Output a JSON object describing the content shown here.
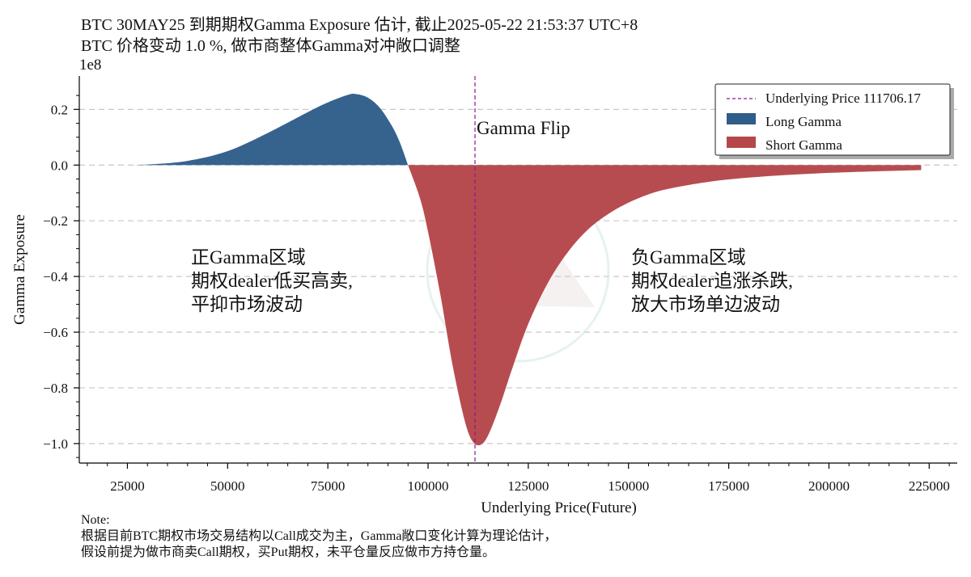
{
  "chart_data": {
    "type": "area",
    "title": "BTC 30MAY25 到期期权Gamma Exposure 估计, 截止2025-05-22 21:53:37 UTC+8",
    "subtitle": "BTC 价格变动 1.0 %, 做市商整体Gamma对冲敞口调整",
    "xlabel": "Underlying Price(Future)",
    "ylabel": "Gamma Exposure",
    "y_scale_label": "1e8",
    "xlim": [
      13000,
      232000
    ],
    "ylim": [
      -1.07,
      0.32
    ],
    "x_ticks": [
      25000,
      50000,
      75000,
      100000,
      125000,
      150000,
      175000,
      200000,
      225000
    ],
    "y_ticks": [
      0.2,
      0.0,
      -0.2,
      -0.4,
      -0.6,
      -0.8,
      -1.0
    ],
    "y_tick_labels": [
      "0.2",
      "0.0",
      "−0.2",
      "−0.4",
      "−0.6",
      "−0.8",
      "−1.0"
    ],
    "grid": "horizontal dashed",
    "underlying_price": 111706.17,
    "flip_price": 95000,
    "series": [
      {
        "name": "Long Gamma",
        "color": "#2f5d8a",
        "x": [
          22000,
          30000,
          40000,
          50000,
          60000,
          70000,
          75000,
          80000,
          82000,
          85000,
          88000,
          91000,
          93000,
          95000
        ],
        "y": [
          0.0,
          0.002,
          0.015,
          0.05,
          0.115,
          0.19,
          0.225,
          0.252,
          0.255,
          0.242,
          0.205,
          0.14,
          0.08,
          0.0
        ]
      },
      {
        "name": "Short Gamma",
        "color": "#b5464a",
        "x": [
          95000,
          98000,
          100000,
          103000,
          106000,
          109000,
          111000,
          113000,
          115000,
          118000,
          121000,
          125000,
          130000,
          135000,
          140000,
          145000,
          150000,
          155000,
          160000,
          170000,
          180000,
          190000,
          200000,
          210000,
          223000
        ],
        "y": [
          0.0,
          -0.12,
          -0.24,
          -0.46,
          -0.71,
          -0.91,
          -0.99,
          -1.005,
          -0.97,
          -0.86,
          -0.73,
          -0.57,
          -0.42,
          -0.31,
          -0.23,
          -0.175,
          -0.135,
          -0.105,
          -0.085,
          -0.06,
          -0.045,
          -0.035,
          -0.028,
          -0.023,
          -0.018
        ]
      }
    ],
    "legend": {
      "position": "top-right",
      "entries": [
        "Underlying Price 111706.17",
        "Long Gamma",
        "Short Gamma"
      ]
    },
    "annotations": {
      "flip_label": "Gamma Flip",
      "left_region": [
        "正Gamma区域",
        "期权dealer低买高卖,",
        "平抑市场波动"
      ],
      "right_region": [
        "负Gamma区域",
        "期权dealer追涨杀跌,",
        "放大市场单边波动"
      ]
    },
    "colors": {
      "long": "#2f5d8a",
      "short": "#b5464a",
      "underlying_line": "#8b1a8b",
      "grid": "#c8c8c8"
    }
  },
  "note": {
    "heading": "Note:",
    "line1": "根据目前BTC期权市场交易结构以Call成交为主，Gamma敞口变化计算为理论估计，",
    "line2": "假设前提为做市商卖Call期权，买Put期权，未平仓量反应做市方持仓量。"
  }
}
